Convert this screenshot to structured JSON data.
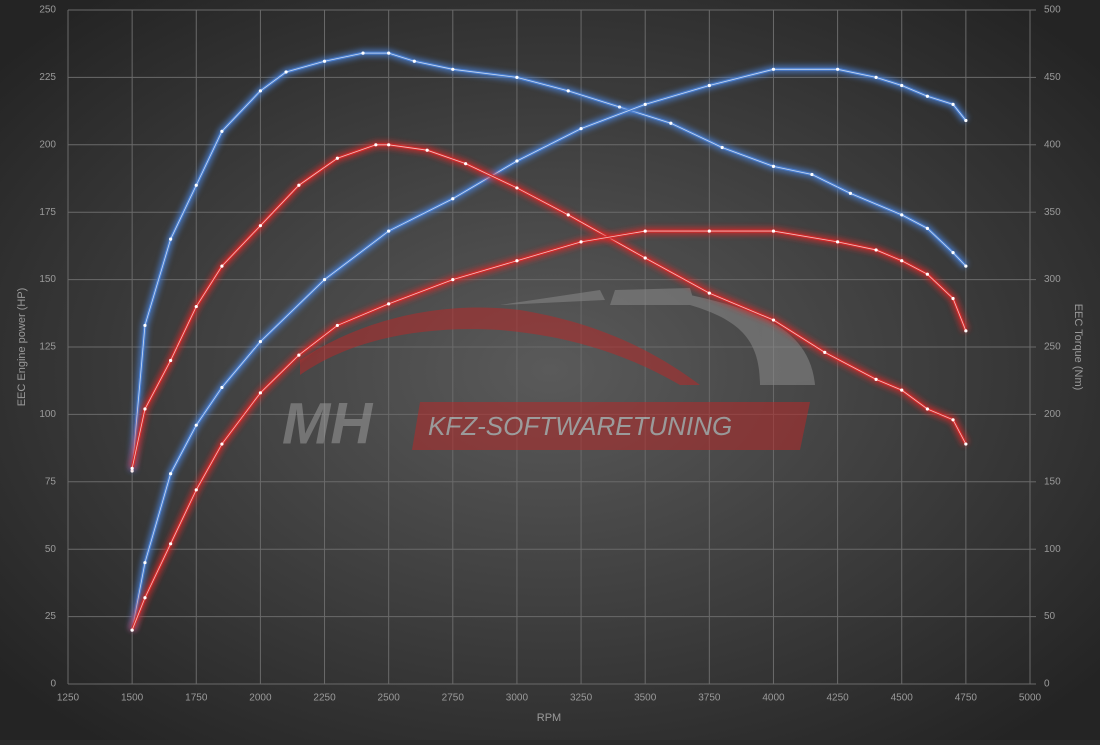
{
  "chart_data": {
    "type": "line",
    "xlabel": "RPM",
    "ylabel": "EEC Engine power (HP)",
    "y2label": "EEC Torque (Nm)",
    "watermark": [
      "MH",
      "KFZ-SOFTWARETUNING"
    ],
    "xlim": [
      1250,
      5000
    ],
    "xticks": [
      1250,
      1500,
      1750,
      2000,
      2250,
      2500,
      2750,
      3000,
      3250,
      3500,
      3750,
      4000,
      4250,
      4500,
      4750,
      5000
    ],
    "ylim": [
      0,
      250
    ],
    "yticks": [
      0,
      25,
      50,
      75,
      100,
      125,
      150,
      175,
      200,
      225,
      250
    ],
    "y2lim": [
      0,
      500
    ],
    "y2ticks": [
      0,
      50,
      100,
      150,
      200,
      250,
      300,
      350,
      400,
      450,
      500
    ],
    "grid": true,
    "series": [
      {
        "color": "#4a7fd0",
        "axis": "y2",
        "x": [
          1500,
          1550,
          1650,
          1750,
          1850,
          2000,
          2100,
          2250,
          2400,
          2500,
          2600,
          2750,
          3000,
          3200,
          3400,
          3600,
          3800,
          4000,
          4150,
          4300,
          4500,
          4600,
          4700,
          4750
        ],
        "values": [
          158,
          266,
          330,
          370,
          410,
          440,
          454,
          462,
          468,
          468,
          462,
          456,
          450,
          440,
          428,
          416,
          398,
          384,
          378,
          364,
          348,
          338,
          320,
          310
        ]
      },
      {
        "color": "#4a7fd0",
        "axis": "y",
        "x": [
          1500,
          1550,
          1650,
          1750,
          1850,
          2000,
          2250,
          2500,
          2750,
          3000,
          3250,
          3500,
          3750,
          4000,
          4250,
          4400,
          4500,
          4600,
          4700,
          4750
        ],
        "values": [
          20,
          45,
          78,
          96,
          110,
          127,
          150,
          168,
          180,
          194,
          206,
          215,
          222,
          228,
          228,
          225,
          222,
          218,
          215,
          209
        ]
      },
      {
        "color": "#d42a2a",
        "axis": "y2",
        "x": [
          1500,
          1550,
          1650,
          1750,
          1850,
          2000,
          2150,
          2300,
          2450,
          2500,
          2650,
          2800,
          3000,
          3200,
          3500,
          3750,
          4000,
          4200,
          4400,
          4500,
          4600,
          4700,
          4750
        ],
        "values": [
          160,
          204,
          240,
          280,
          310,
          340,
          370,
          390,
          400,
          400,
          396,
          386,
          368,
          348,
          316,
          290,
          270,
          246,
          226,
          218,
          204,
          196,
          178
        ]
      },
      {
        "color": "#d42a2a",
        "axis": "y",
        "x": [
          1500,
          1550,
          1650,
          1750,
          1850,
          2000,
          2150,
          2300,
          2500,
          2750,
          3000,
          3250,
          3500,
          3750,
          4000,
          4250,
          4400,
          4500,
          4600,
          4700,
          4750
        ],
        "values": [
          20,
          32,
          52,
          72,
          89,
          108,
          122,
          133,
          141,
          150,
          157,
          164,
          168,
          168,
          168,
          164,
          161,
          157,
          152,
          143,
          131
        ]
      }
    ]
  }
}
